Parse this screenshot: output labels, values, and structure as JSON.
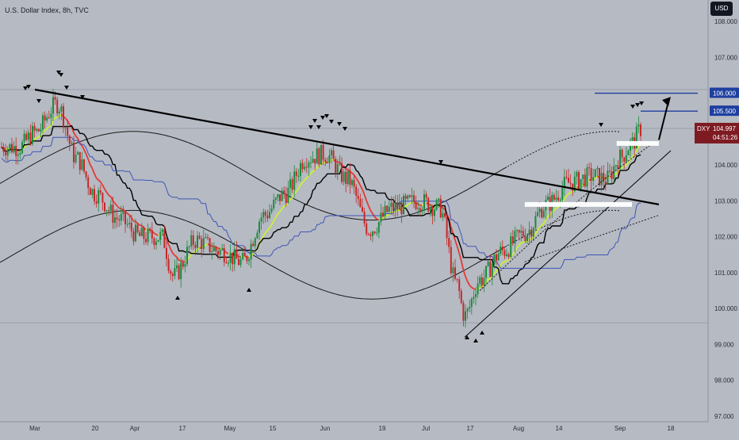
{
  "header": {
    "title": "U.S. Dollar Index, 8h, TVC",
    "currency_button": "USD"
  },
  "colors": {
    "background": "#b6bac3",
    "trendline": "#000000",
    "level_line": "#1e3fa0",
    "level_label_bg": "#1e3fa0",
    "last_price_bg": "#7e1a22",
    "bull_candle": "#1b8a3c",
    "bear_candle": "#c62828",
    "ema_fast": "#c9f231",
    "ema_slow": "#e53935",
    "kijun": "#000000",
    "baseline": "#3f56b8",
    "support_zone": "#ffffff"
  },
  "chart_data": {
    "type": "candlestick",
    "title": "U.S. Dollar Index, 8h, TVC",
    "currency": "USD",
    "symbol": "DXY",
    "last_price": "104.997",
    "countdown": "04:51:26",
    "ylim": [
      97.0,
      108.0
    ],
    "y_ticks": [
      "108.000",
      "107.000",
      "106.000",
      "105.000",
      "104.000",
      "103.000",
      "102.000",
      "101.000",
      "100.000",
      "99.000",
      "98.000",
      "97.000"
    ],
    "x_ticks": [
      "Mar",
      "20",
      "Apr",
      "17",
      "May",
      "15",
      "Jun",
      "19",
      "Jul",
      "17",
      "Aug",
      "14",
      "Sep",
      "18"
    ],
    "levels": [
      {
        "label": "106.000",
        "value": 106.0
      },
      {
        "label": "105.500",
        "value": 105.5
      }
    ],
    "close_series": [
      {
        "date": "Feb 24",
        "value": 104.5
      },
      {
        "date": "Mar 1",
        "value": 104.9
      },
      {
        "date": "Mar 8",
        "value": 105.7
      },
      {
        "date": "Mar 14",
        "value": 104.2
      },
      {
        "date": "Mar 20",
        "value": 103.2
      },
      {
        "date": "Mar 27",
        "value": 102.5
      },
      {
        "date": "Apr 3",
        "value": 102.0
      },
      {
        "date": "Apr 10",
        "value": 102.0
      },
      {
        "date": "Apr 14",
        "value": 100.9
      },
      {
        "date": "Apr 21",
        "value": 101.9
      },
      {
        "date": "Apr 28",
        "value": 101.6
      },
      {
        "date": "May 5",
        "value": 101.3
      },
      {
        "date": "May 12",
        "value": 102.6
      },
      {
        "date": "May 19",
        "value": 103.2
      },
      {
        "date": "May 26",
        "value": 104.2
      },
      {
        "date": "Jun 1",
        "value": 104.3
      },
      {
        "date": "Jun 8",
        "value": 103.6
      },
      {
        "date": "Jun 15",
        "value": 102.2
      },
      {
        "date": "Jun 22",
        "value": 102.8
      },
      {
        "date": "Jun 29",
        "value": 103.0
      },
      {
        "date": "Jul 6",
        "value": 102.8
      },
      {
        "date": "Jul 12",
        "value": 100.7
      },
      {
        "date": "Jul 15",
        "value": 99.8
      },
      {
        "date": "Jul 20",
        "value": 100.8
      },
      {
        "date": "Jul 27",
        "value": 101.6
      },
      {
        "date": "Aug 3",
        "value": 102.1
      },
      {
        "date": "Aug 10",
        "value": 102.9
      },
      {
        "date": "Aug 17",
        "value": 103.5
      },
      {
        "date": "Aug 24",
        "value": 103.7
      },
      {
        "date": "Aug 28",
        "value": 103.6
      },
      {
        "date": "Sep 1",
        "value": 104.2
      },
      {
        "date": "Sep 5",
        "value": 104.6
      },
      {
        "date": "Sep 8",
        "value": 105.0
      }
    ],
    "trendlines": [
      {
        "name": "descending resistance",
        "from": {
          "date": "Mar 1",
          "value": 106.1
        },
        "to": {
          "date": "Sep 14",
          "value": 102.9
        }
      },
      {
        "name": "ascending support",
        "from": {
          "date": "Jul 15",
          "value": 99.2
        },
        "to": {
          "date": "Sep 18",
          "value": 104.4
        }
      }
    ],
    "zones": [
      {
        "from": "Aug 3",
        "to": "Sep 5",
        "value": 102.9
      },
      {
        "from": "Aug 31",
        "to": "Sep 14",
        "value": 104.6
      }
    ],
    "arrow": {
      "from": {
        "date": "Sep 14",
        "value": 104.7
      },
      "to": {
        "date": "Sep 18",
        "value": 105.9
      }
    }
  }
}
